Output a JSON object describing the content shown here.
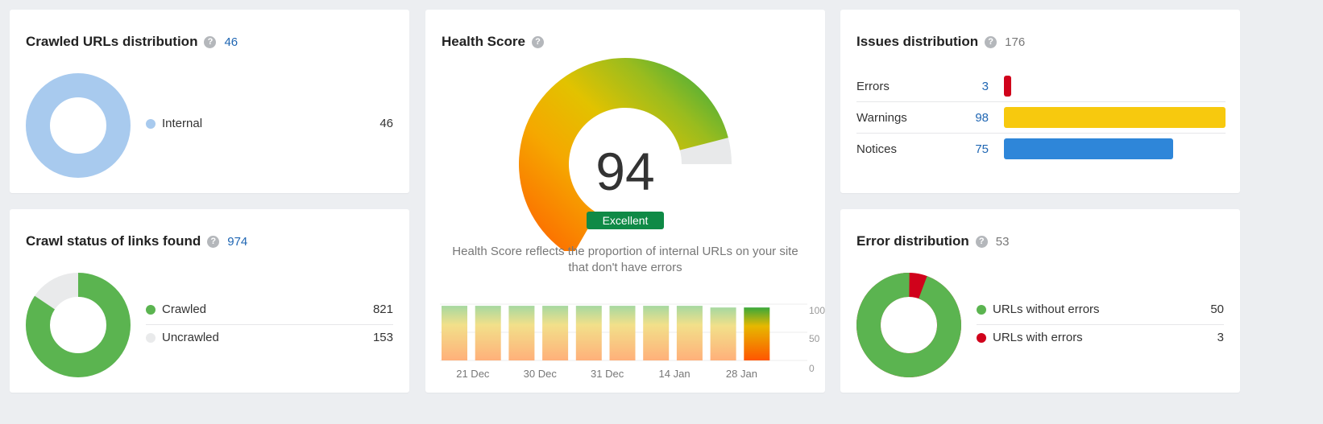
{
  "crawled_urls": {
    "title": "Crawled URLs distribution",
    "count": "46",
    "legend": [
      {
        "label": "Internal",
        "value": "46",
        "color": "#a8caee"
      }
    ]
  },
  "crawl_status": {
    "title": "Crawl status of links found",
    "count": "974",
    "legend": [
      {
        "label": "Crawled",
        "value": "821",
        "color": "#5bb450"
      },
      {
        "label": "Uncrawled",
        "value": "153",
        "color": "#e9eaeb"
      }
    ]
  },
  "health_score": {
    "title": "Health Score",
    "score": "94",
    "score_fraction": 0.94,
    "rating": "Excellent",
    "description": "Health Score reflects the proportion of internal URLs on your site that don't have errors"
  },
  "issues": {
    "title": "Issues distribution",
    "count": "176",
    "rows": [
      {
        "label": "Errors",
        "value": "3",
        "color": "#d0021b"
      },
      {
        "label": "Warnings",
        "value": "98",
        "color": "#f7c90e"
      },
      {
        "label": "Notices",
        "value": "75",
        "color": "#2e86d9"
      }
    ]
  },
  "error_distribution": {
    "title": "Error distribution",
    "count": "53",
    "legend": [
      {
        "label": "URLs without errors",
        "value": "50",
        "color": "#5bb450"
      },
      {
        "label": "URLs with errors",
        "value": "3",
        "color": "#d0021b"
      }
    ]
  },
  "chart_data": {
    "type": "bar",
    "title": "",
    "categories": [
      "",
      "21 Dec",
      "",
      "30 Dec",
      "",
      "31 Dec",
      "",
      "14 Jan",
      "",
      "28 Jan"
    ],
    "x_tick_labels": [
      "21 Dec",
      "30 Dec",
      "31 Dec",
      "14 Jan",
      "28 Jan"
    ],
    "values": [
      97,
      97,
      97,
      97,
      97,
      97,
      97,
      97,
      94,
      94
    ],
    "ylim": [
      0,
      100
    ],
    "y_ticks": [
      "100",
      "50",
      "0"
    ],
    "grid": true,
    "highlight_last": true
  }
}
